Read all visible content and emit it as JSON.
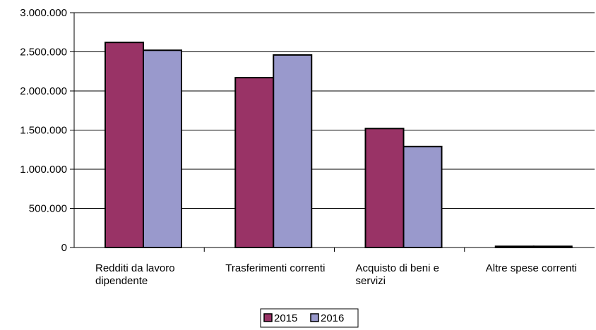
{
  "chart_data": {
    "type": "bar",
    "categories": [
      [
        "Redditi da lavoro",
        "dipendente"
      ],
      [
        "Trasferimenti correnti"
      ],
      [
        "Acquisto di beni e",
        "servizi"
      ],
      [
        "Altre spese correnti"
      ]
    ],
    "series": [
      {
        "name": "2015",
        "values": [
          2620000,
          2170000,
          1520000,
          15000
        ],
        "color": "#993366"
      },
      {
        "name": "2016",
        "values": [
          2520000,
          2460000,
          1290000,
          15000
        ],
        "color": "#9999cc"
      }
    ],
    "ylim": [
      0,
      3000000
    ],
    "yticks": [
      0,
      500000,
      1000000,
      1500000,
      2000000,
      2500000,
      3000000
    ],
    "ytick_labels": [
      "0",
      "500.000",
      "1.000.000",
      "1.500.000",
      "2.000.000",
      "2.500.000",
      "3.000.000"
    ],
    "grid": true,
    "legend": "bottom-center"
  }
}
